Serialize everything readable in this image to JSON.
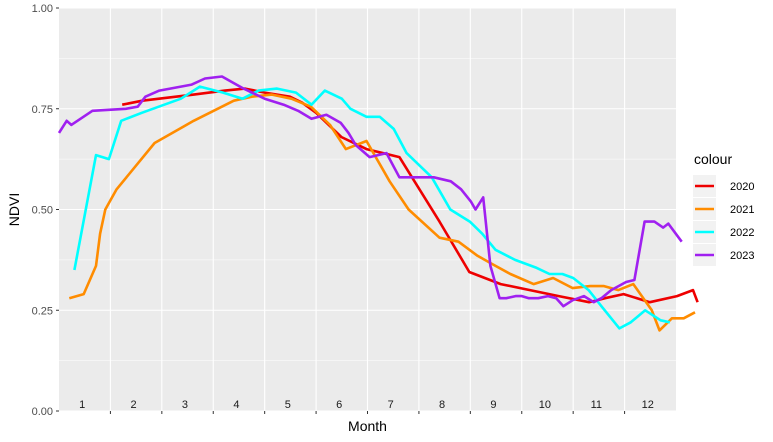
{
  "chart_data": {
    "type": "line",
    "xlabel": "Month",
    "ylabel": "NDVI",
    "ylim": [
      0,
      1
    ],
    "xlim": [
      0,
      12
    ],
    "y_ticks": [
      "0.00",
      "0.25",
      "0.50",
      "0.75",
      "1.00"
    ],
    "y_tick_values": [
      0,
      0.25,
      0.5,
      0.75,
      1
    ],
    "month_labels": [
      "1",
      "2",
      "3",
      "4",
      "5",
      "6",
      "7",
      "8",
      "9",
      "10",
      "11",
      "12"
    ],
    "grid": true,
    "legend_title": "colour",
    "legend_position": "right",
    "series": [
      {
        "name": "2020",
        "color": "#EE0000",
        "x": [
          1.23,
          1.62,
          2.62,
          3.23,
          3.62,
          4.0,
          4.49,
          4.73,
          5.0,
          5.49,
          5.98,
          6.62,
          7.4,
          7.98,
          8.59,
          9.72,
          10.31,
          10.62,
          10.98,
          11.49,
          12.02,
          12.33,
          12.42
        ],
        "y": [
          0.76,
          0.77,
          0.785,
          0.795,
          0.8,
          0.79,
          0.78,
          0.765,
          0.74,
          0.68,
          0.65,
          0.63,
          0.47,
          0.345,
          0.315,
          0.285,
          0.27,
          0.28,
          0.29,
          0.27,
          0.285,
          0.3,
          0.27
        ]
      },
      {
        "name": "2021",
        "color": "#FF8C00",
        "x": [
          0.2,
          0.48,
          0.72,
          0.8,
          0.9,
          1.12,
          1.86,
          2.62,
          3.4,
          3.75,
          4.14,
          4.52,
          4.9,
          5.27,
          5.58,
          5.98,
          6.43,
          6.8,
          7.4,
          7.77,
          8.14,
          8.42,
          8.78,
          9.23,
          9.61,
          9.99,
          10.33,
          10.6,
          10.88,
          11.17,
          11.53,
          11.68,
          11.92,
          12.15,
          12.37
        ],
        "y": [
          0.28,
          0.29,
          0.36,
          0.44,
          0.5,
          0.55,
          0.665,
          0.72,
          0.77,
          0.78,
          0.785,
          0.775,
          0.755,
          0.71,
          0.65,
          0.67,
          0.57,
          0.5,
          0.43,
          0.42,
          0.385,
          0.365,
          0.34,
          0.315,
          0.33,
          0.305,
          0.31,
          0.31,
          0.3,
          0.315,
          0.25,
          0.2,
          0.23,
          0.23,
          0.245
        ]
      },
      {
        "name": "2022",
        "color": "#00FFFF",
        "x": [
          0.3,
          0.72,
          0.97,
          1.21,
          1.61,
          2.37,
          2.74,
          3.19,
          3.57,
          3.88,
          4.24,
          4.61,
          4.91,
          5.17,
          5.5,
          5.67,
          5.98,
          6.24,
          6.51,
          6.76,
          7.25,
          7.61,
          7.99,
          8.23,
          8.49,
          8.87,
          9.29,
          9.54,
          9.79,
          10.0,
          10.3,
          10.55,
          10.9,
          11.12,
          11.4,
          11.7,
          11.88
        ],
        "y": [
          0.35,
          0.635,
          0.625,
          0.72,
          0.74,
          0.775,
          0.805,
          0.79,
          0.775,
          0.795,
          0.8,
          0.79,
          0.76,
          0.795,
          0.775,
          0.75,
          0.73,
          0.73,
          0.7,
          0.64,
          0.58,
          0.5,
          0.47,
          0.44,
          0.4,
          0.375,
          0.355,
          0.34,
          0.34,
          0.33,
          0.3,
          0.26,
          0.205,
          0.22,
          0.25,
          0.225,
          0.22
        ]
      },
      {
        "name": "2023",
        "color": "#A020F0",
        "x": [
          0.0,
          0.15,
          0.24,
          0.65,
          1.3,
          1.53,
          1.68,
          1.95,
          2.58,
          2.84,
          3.17,
          3.59,
          4.0,
          4.37,
          4.65,
          4.91,
          5.2,
          5.48,
          5.63,
          5.77,
          6.04,
          6.37,
          6.62,
          7.08,
          7.29,
          7.62,
          7.82,
          8.01,
          8.1,
          8.25,
          8.39,
          8.57,
          8.7,
          8.88,
          9.0,
          9.14,
          9.32,
          9.51,
          9.67,
          9.81,
          9.99,
          10.21,
          10.4,
          10.55,
          10.74,
          11.03,
          11.19,
          11.39,
          11.58,
          11.75,
          11.85,
          12.11
        ],
        "y": [
          0.69,
          0.72,
          0.71,
          0.745,
          0.75,
          0.755,
          0.78,
          0.795,
          0.81,
          0.825,
          0.83,
          0.8,
          0.775,
          0.76,
          0.745,
          0.725,
          0.735,
          0.715,
          0.69,
          0.66,
          0.63,
          0.64,
          0.58,
          0.58,
          0.58,
          0.57,
          0.55,
          0.52,
          0.5,
          0.53,
          0.36,
          0.28,
          0.28,
          0.285,
          0.285,
          0.28,
          0.28,
          0.285,
          0.28,
          0.26,
          0.275,
          0.285,
          0.27,
          0.28,
          0.3,
          0.32,
          0.325,
          0.47,
          0.47,
          0.455,
          0.465,
          0.42
        ]
      }
    ]
  }
}
